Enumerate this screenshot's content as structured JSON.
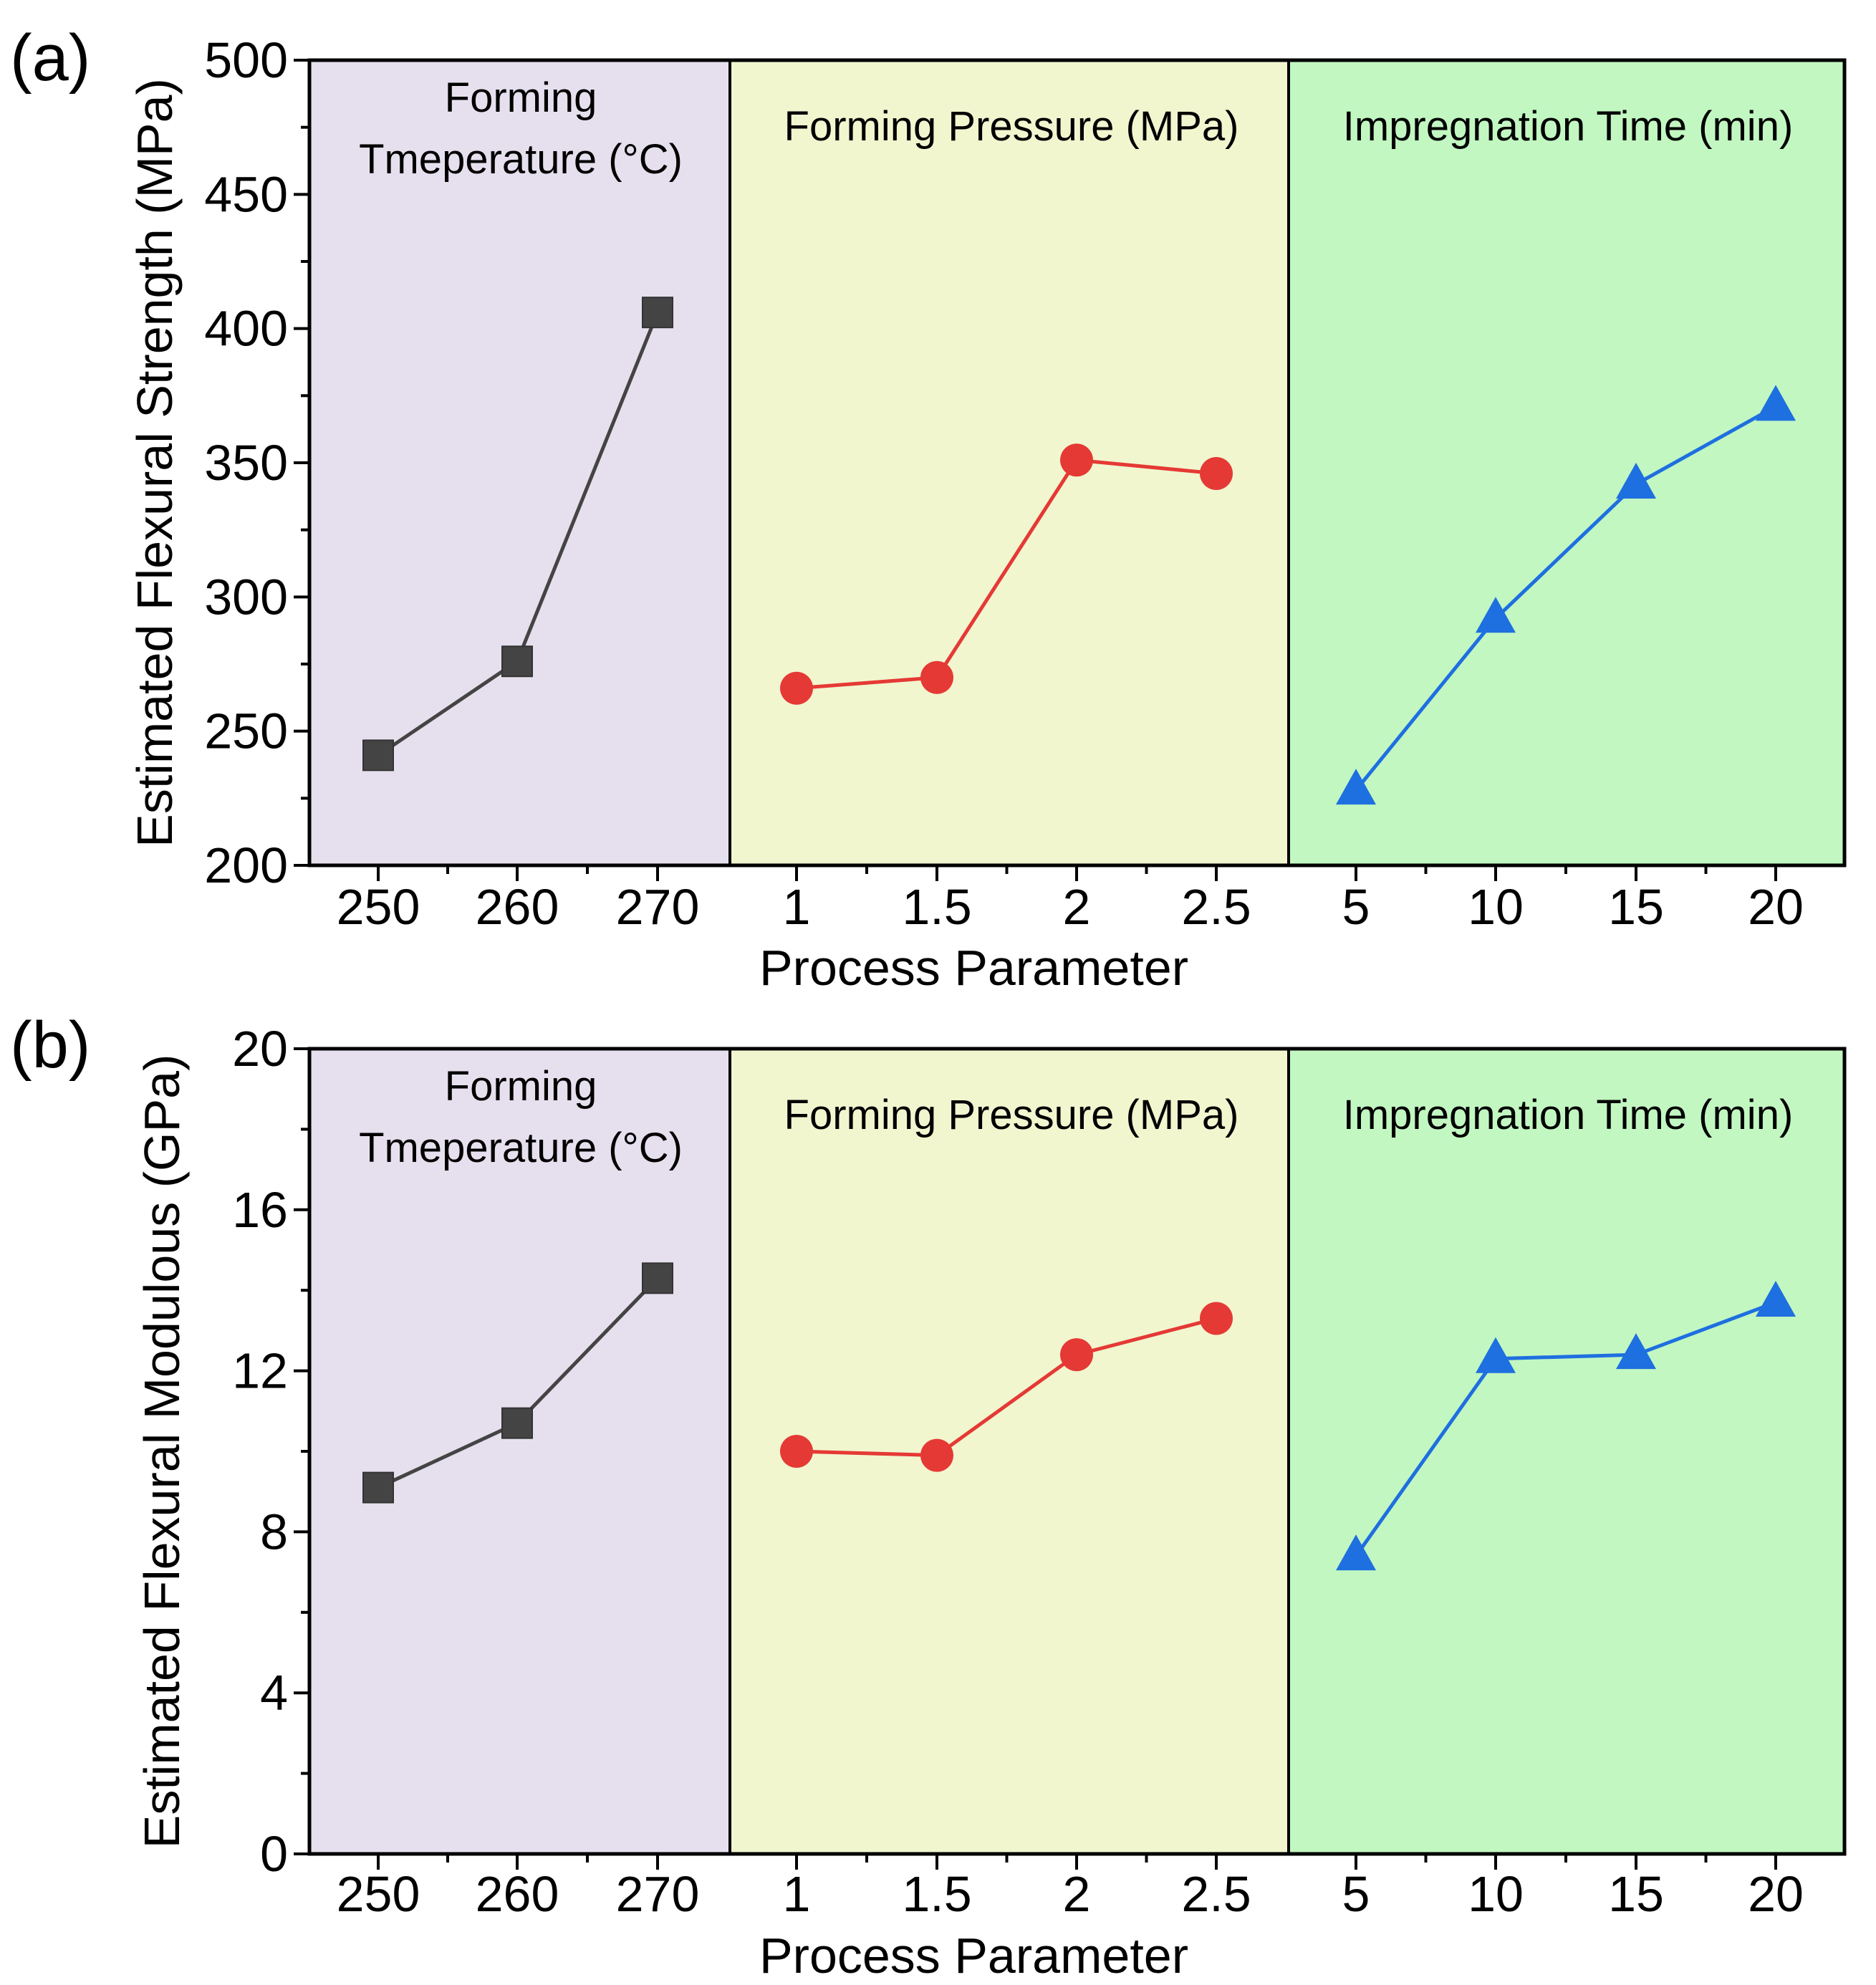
{
  "chart_data": [
    {
      "type": "line",
      "panel_label": "(a)",
      "ylabel": "Estimated Flexural Strength (MPa)",
      "xlabel": "Process Parameter",
      "ylim": [
        200,
        500
      ],
      "yticks": [
        "200",
        "250",
        "300",
        "350",
        "400",
        "450",
        "500"
      ],
      "groups": [
        {
          "label_lines": [
            "Forming",
            "Tmeperature (°C)"
          ],
          "background": "#e6e0ee",
          "color": "#444444",
          "marker": "square",
          "categories": [
            "250",
            "260",
            "270"
          ],
          "values": [
            241,
            276,
            406
          ]
        },
        {
          "label_lines": [
            "Forming Pressure (MPa)"
          ],
          "background": "#f1f6cf",
          "color": "#e53935",
          "marker": "circle",
          "categories": [
            "1",
            "1.5",
            "2",
            "2.5"
          ],
          "values": [
            266,
            270,
            351,
            346
          ]
        },
        {
          "label_lines": [
            "Impregnation Time (min)"
          ],
          "background": "#c2f7c2",
          "color": "#1e6fe0",
          "marker": "triangle",
          "categories": [
            "5",
            "10",
            "15",
            "20"
          ],
          "values": [
            228,
            292,
            342,
            371
          ]
        }
      ]
    },
    {
      "type": "line",
      "panel_label": "(b)",
      "ylabel": "Estimated Flexural Modulous (GPa)",
      "xlabel": "Process Parameter",
      "ylim": [
        0,
        20
      ],
      "yticks": [
        "0",
        "4",
        "8",
        "12",
        "16",
        "20"
      ],
      "groups": [
        {
          "label_lines": [
            "Forming",
            "Tmeperature (°C)"
          ],
          "background": "#e6e0ee",
          "color": "#444444",
          "marker": "square",
          "categories": [
            "250",
            "260",
            "270"
          ],
          "values": [
            9.1,
            10.7,
            14.3
          ]
        },
        {
          "label_lines": [
            "Forming Pressure (MPa)"
          ],
          "background": "#f1f6cf",
          "color": "#e53935",
          "marker": "circle",
          "categories": [
            "1",
            "1.5",
            "2",
            "2.5"
          ],
          "values": [
            10.0,
            9.9,
            12.4,
            13.3
          ]
        },
        {
          "label_lines": [
            "Impregnation Time (min)"
          ],
          "background": "#c2f7c2",
          "color": "#1e6fe0",
          "marker": "triangle",
          "categories": [
            "5",
            "10",
            "15",
            "20"
          ],
          "values": [
            7.4,
            12.3,
            12.4,
            13.7
          ]
        }
      ]
    }
  ]
}
